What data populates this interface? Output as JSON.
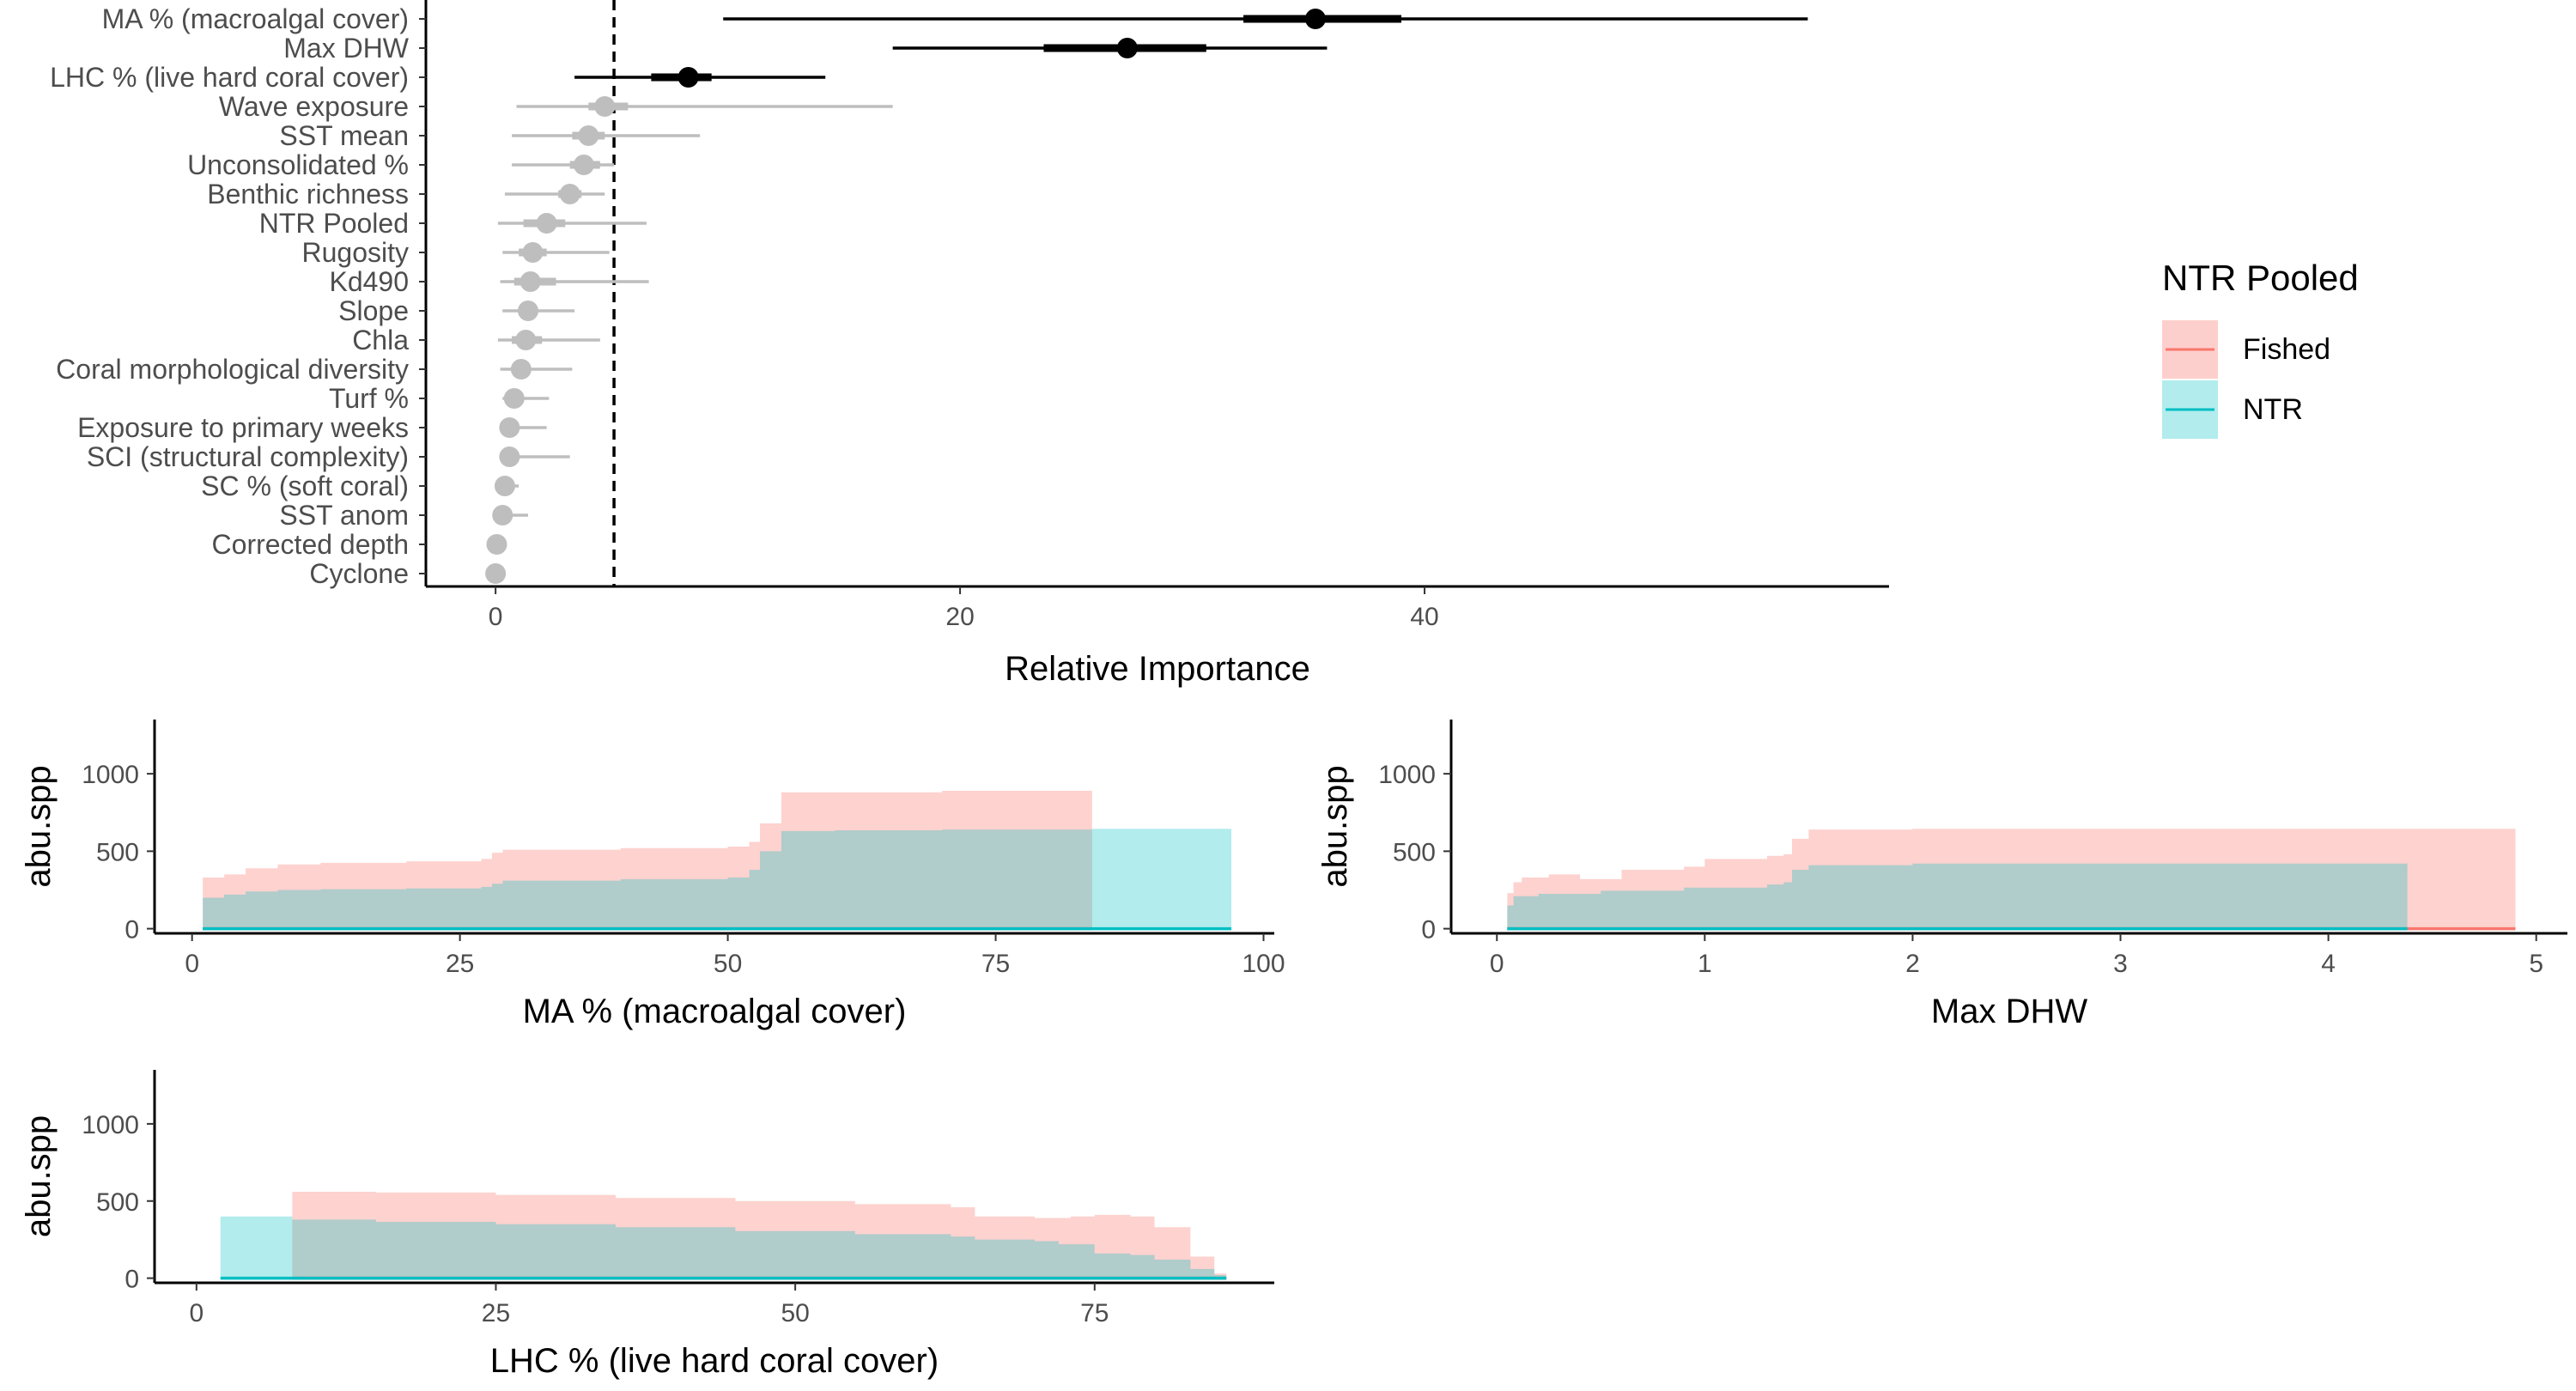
{
  "chart_data": [
    {
      "type": "dot-interval",
      "xlabel": "Relative Importance",
      "xlim": [
        -3,
        60
      ],
      "xticks": [
        0,
        20,
        40
      ],
      "reference_line": 5.1,
      "highlight_color": "#000000",
      "muted_color": "#bebebe",
      "variables": [
        {
          "label": "MA % (macroalgal cover)",
          "median": 35.3,
          "inner": [
            32.2,
            39.0
          ],
          "outer": [
            9.8,
            56.5
          ],
          "highlight": true
        },
        {
          "label": "Max DHW",
          "median": 27.2,
          "inner": [
            23.6,
            30.6
          ],
          "outer": [
            17.1,
            35.8
          ],
          "highlight": true
        },
        {
          "label": "LHC % (live hard coral cover)",
          "median": 8.3,
          "inner": [
            6.7,
            9.3
          ],
          "outer": [
            3.4,
            14.2
          ],
          "highlight": true
        },
        {
          "label": "Wave exposure",
          "median": 4.7,
          "inner": [
            4.0,
            5.7
          ],
          "outer": [
            0.9,
            17.1
          ]
        },
        {
          "label": "SST mean",
          "median": 4.0,
          "inner": [
            3.3,
            4.7
          ],
          "outer": [
            0.7,
            8.8
          ]
        },
        {
          "label": "Unconsolidated %",
          "median": 3.8,
          "inner": [
            3.2,
            4.5
          ],
          "outer": [
            0.7,
            5.1
          ]
        },
        {
          "label": "Benthic richness",
          "median": 3.2,
          "inner": [
            2.7,
            3.7
          ],
          "outer": [
            0.4,
            4.7
          ]
        },
        {
          "label": "NTR Pooled",
          "median": 2.2,
          "inner": [
            1.2,
            3.0
          ],
          "outer": [
            0.1,
            6.5
          ]
        },
        {
          "label": "Rugosity",
          "median": 1.6,
          "inner": [
            1.0,
            2.2
          ],
          "outer": [
            0.3,
            4.9
          ]
        },
        {
          "label": "Kd490",
          "median": 1.5,
          "inner": [
            0.8,
            2.6
          ],
          "outer": [
            0.2,
            6.6
          ]
        },
        {
          "label": "Slope",
          "median": 1.4,
          "inner": [
            1.0,
            1.8
          ],
          "outer": [
            0.3,
            3.4
          ]
        },
        {
          "label": "Chla",
          "median": 1.3,
          "inner": [
            0.7,
            2.0
          ],
          "outer": [
            0.1,
            4.5
          ]
        },
        {
          "label": "Coral morphological diversity",
          "median": 1.1,
          "inner": [
            0.7,
            1.5
          ],
          "outer": [
            0.2,
            3.3
          ]
        },
        {
          "label": "Turf %",
          "median": 0.8,
          "inner": [
            0.5,
            1.1
          ],
          "outer": [
            0.3,
            2.3
          ]
        },
        {
          "label": "Exposure to primary weeks",
          "median": 0.6,
          "inner": [
            0.4,
            0.9
          ],
          "outer": [
            0.2,
            2.2
          ]
        },
        {
          "label": "SCI (structural complexity)",
          "median": 0.6,
          "inner": [
            0.3,
            0.9
          ],
          "outer": [
            0.2,
            3.2
          ]
        },
        {
          "label": "SC % (soft coral)",
          "median": 0.4,
          "inner": [
            0.3,
            0.7
          ],
          "outer": [
            0.1,
            1.0
          ]
        },
        {
          "label": "SST anom",
          "median": 0.3,
          "inner": [
            0.2,
            0.6
          ],
          "outer": [
            0.0,
            1.4
          ]
        },
        {
          "label": "Corrected depth",
          "median": 0.05,
          "inner": [
            0.0,
            0.1
          ],
          "outer": [
            0.0,
            0.3
          ]
        },
        {
          "label": "Cyclone",
          "median": 0.0,
          "inner": [
            0.0,
            0.05
          ],
          "outer": [
            0.0,
            0.2
          ]
        }
      ]
    },
    {
      "type": "area",
      "xlabel": "MA % (macroalgal cover)",
      "ylabel": "abu.spp",
      "xlim": [
        -3.5,
        101
      ],
      "ylim": [
        -30,
        1350
      ],
      "xticks": [
        0,
        25,
        50,
        75,
        100
      ],
      "yticks": [
        0,
        500,
        1000
      ],
      "series": [
        {
          "name": "Fished",
          "x": [
            1,
            3,
            5,
            8,
            12,
            20,
            27,
            28,
            29,
            40,
            50,
            52,
            53,
            55,
            60,
            70,
            84
          ],
          "values": [
            330,
            350,
            390,
            415,
            425,
            435,
            450,
            490,
            510,
            520,
            530,
            560,
            680,
            880,
            880,
            890,
            900
          ]
        },
        {
          "name": "NTR",
          "x": [
            1,
            3,
            5,
            8,
            12,
            20,
            27,
            28,
            29,
            40,
            50,
            52,
            53,
            55,
            60,
            70,
            84,
            97
          ],
          "values": [
            200,
            220,
            240,
            250,
            255,
            260,
            270,
            290,
            310,
            320,
            330,
            380,
            500,
            630,
            635,
            640,
            645,
            650
          ]
        }
      ]
    },
    {
      "type": "area",
      "xlabel": "Max DHW",
      "ylabel": "abu.spp",
      "xlim": [
        -0.22,
        5.15
      ],
      "ylim": [
        -30,
        1350
      ],
      "xticks": [
        0,
        1,
        2,
        3,
        4,
        5
      ],
      "yticks": [
        0,
        500,
        1000
      ],
      "series": [
        {
          "name": "Fished",
          "x": [
            0.05,
            0.08,
            0.12,
            0.25,
            0.4,
            0.6,
            0.9,
            1.0,
            1.3,
            1.38,
            1.42,
            1.5,
            2.0,
            3.0,
            4.0,
            4.9
          ],
          "values": [
            230,
            300,
            330,
            350,
            320,
            380,
            400,
            450,
            470,
            480,
            580,
            640,
            645,
            645,
            645,
            650
          ]
        },
        {
          "name": "NTR",
          "x": [
            0.05,
            0.08,
            0.2,
            0.5,
            0.9,
            1.3,
            1.38,
            1.42,
            1.5,
            2.0,
            3.0,
            4.38
          ],
          "values": [
            150,
            210,
            225,
            245,
            265,
            285,
            300,
            380,
            410,
            420,
            420,
            420
          ]
        }
      ]
    },
    {
      "type": "area",
      "xlabel": "LHC % (live hard coral cover)",
      "ylabel": "abu.spp",
      "xlim": [
        -3.5,
        90
      ],
      "ylim": [
        -30,
        1350
      ],
      "xticks": [
        0,
        25,
        50,
        75
      ],
      "yticks": [
        0,
        500,
        1000
      ],
      "series": [
        {
          "name": "Fished",
          "x": [
            8,
            15,
            25,
            35,
            45,
            55,
            63,
            65,
            70,
            73,
            75,
            78,
            80,
            83,
            85,
            86
          ],
          "values": [
            560,
            555,
            540,
            520,
            500,
            480,
            460,
            400,
            390,
            400,
            410,
            400,
            330,
            140,
            30,
            20
          ]
        },
        {
          "name": "NTR",
          "x": [
            2,
            8,
            15,
            25,
            35,
            45,
            55,
            63,
            65,
            70,
            72,
            75,
            78,
            80,
            83,
            85,
            86
          ],
          "values": [
            400,
            380,
            365,
            350,
            330,
            305,
            285,
            270,
            250,
            240,
            220,
            160,
            150,
            120,
            60,
            20,
            15
          ]
        }
      ]
    }
  ],
  "legend": {
    "title": "NTR Pooled",
    "placement": "right",
    "items": [
      {
        "label": "Fished",
        "line_color": "#F8766D",
        "fill_color": "#F8766D"
      },
      {
        "label": "NTR",
        "line_color": "#00BFC4",
        "fill_color": "#00BFC4"
      }
    ]
  },
  "colors": {
    "fished": "#F8766D",
    "ntr": "#00BFC4",
    "axis": "#000000",
    "tick_text": "#4d4d4d"
  }
}
